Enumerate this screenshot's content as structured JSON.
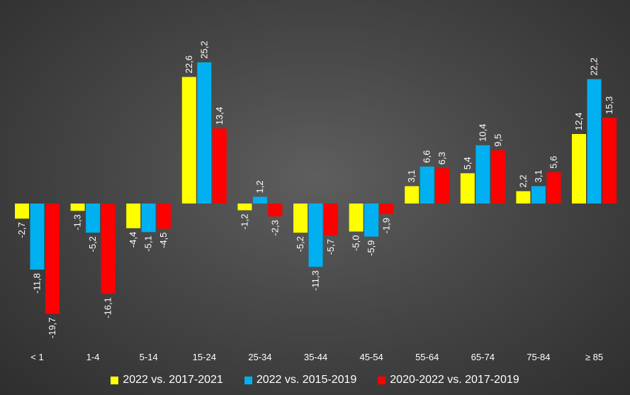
{
  "chart_data": {
    "type": "bar",
    "categories": [
      "< 1",
      "1-4",
      "5-14",
      "15-24",
      "25-34",
      "35-44",
      "45-54",
      "55-64",
      "65-74",
      "75-84",
      "≥ 85"
    ],
    "series": [
      {
        "name": "2022 vs. 2017-2021",
        "color": "#ffff00",
        "values": [
          -2.7,
          -1.3,
          -4.4,
          22.6,
          -1.2,
          -5.2,
          -5.0,
          3.1,
          5.4,
          2.2,
          12.4
        ],
        "labels": [
          "-2,7",
          "-1,3",
          "-4,4",
          "22,6",
          "-1,2",
          "-5,2",
          "-5,0",
          "3,1",
          "5,4",
          "2,2",
          "12,4"
        ]
      },
      {
        "name": "2022 vs. 2015-2019",
        "color": "#00b0f0",
        "values": [
          -11.8,
          -5.2,
          -5.1,
          25.2,
          1.2,
          -11.3,
          -5.9,
          6.6,
          10.4,
          3.1,
          22.2
        ],
        "labels": [
          "-11,8",
          "-5,2",
          "-5,1",
          "25,2",
          "1,2",
          "-11,3",
          "-5,9",
          "6,6",
          "10,4",
          "3,1",
          "22,2"
        ]
      },
      {
        "name": "2020-2022 vs. 2017-2019",
        "color": "#ff0000",
        "values": [
          -19.7,
          -16.1,
          -4.5,
          13.4,
          -2.3,
          -5.7,
          -1.9,
          6.3,
          9.5,
          5.6,
          15.3
        ],
        "labels": [
          "-19,7",
          "-16,1",
          "-4,5",
          "13,4",
          "-2,3",
          "-5,7",
          "-1,9",
          "6,3",
          "9,5",
          "5,6",
          "15,3"
        ]
      }
    ],
    "legend_position": "bottom",
    "grid": false,
    "title": "",
    "xlabel": "",
    "ylabel": ""
  }
}
